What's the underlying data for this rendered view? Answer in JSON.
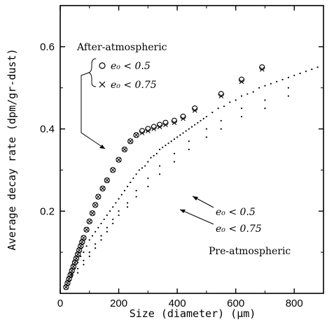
{
  "chart_data": {
    "type": "scatter",
    "xlabel": "Size (diameter) (μm)",
    "ylabel": "Average decay rate (dpm/gr-dust)",
    "xlim": [
      0,
      900
    ],
    "ylim": [
      0,
      0.7
    ],
    "x_ticks": [
      "0",
      "200",
      "400",
      "600",
      "800"
    ],
    "y_ticks": [
      "0.2",
      "0.4",
      "0.6"
    ],
    "grid": false,
    "legend_title": "After-atmospheric",
    "legend_items": [
      "e₀ < 0.5",
      "e₀ < 0.75"
    ],
    "pre_label": "Pre-atmospheric",
    "pre_items": [
      "e₀ < 0.5",
      "e₀ < 0.75"
    ],
    "series": [
      {
        "name": "After-atmospheric e0 < 0.5",
        "marker": "circle",
        "x": [
          20,
          25,
          30,
          35,
          40,
          45,
          50,
          55,
          60,
          65,
          70,
          75,
          80,
          90,
          100,
          110,
          120,
          130,
          145,
          160,
          180,
          200,
          220,
          240,
          260,
          280,
          300,
          320,
          340,
          360,
          390,
          420,
          460,
          550,
          620,
          690
        ],
        "y": [
          0.015,
          0.025,
          0.035,
          0.045,
          0.055,
          0.065,
          0.075,
          0.085,
          0.095,
          0.105,
          0.115,
          0.125,
          0.135,
          0.155,
          0.175,
          0.195,
          0.215,
          0.235,
          0.255,
          0.275,
          0.3,
          0.325,
          0.35,
          0.37,
          0.385,
          0.395,
          0.4,
          0.405,
          0.41,
          0.415,
          0.42,
          0.43,
          0.45,
          0.485,
          0.52,
          0.55
        ]
      },
      {
        "name": "After-atmospheric e0 < 0.75",
        "marker": "cross",
        "x": [
          20,
          25,
          30,
          35,
          40,
          45,
          50,
          55,
          60,
          65,
          70,
          75,
          80,
          90,
          100,
          110,
          120,
          130,
          145,
          160,
          180,
          200,
          220,
          240,
          260,
          280,
          300,
          320,
          340,
          360,
          390,
          420,
          460,
          550,
          620,
          690
        ],
        "y": [
          0.015,
          0.025,
          0.035,
          0.045,
          0.055,
          0.065,
          0.075,
          0.085,
          0.095,
          0.105,
          0.115,
          0.125,
          0.135,
          0.155,
          0.175,
          0.195,
          0.215,
          0.235,
          0.255,
          0.275,
          0.3,
          0.325,
          0.35,
          0.37,
          0.385,
          0.39,
          0.395,
          0.4,
          0.405,
          0.41,
          0.415,
          0.425,
          0.445,
          0.48,
          0.515,
          0.545
        ]
      },
      {
        "name": "Pre-atmospheric e0 < 0.5",
        "marker": "dot",
        "x": [
          20,
          30,
          40,
          50,
          60,
          70,
          80,
          90,
          100,
          110,
          120,
          130,
          140,
          150,
          160,
          170,
          180,
          190,
          200,
          210,
          220,
          230,
          240,
          250,
          260,
          270,
          280,
          290,
          300,
          310,
          320,
          330,
          340,
          350,
          360,
          370,
          380,
          390,
          400,
          410,
          420,
          430,
          440,
          450,
          460,
          470,
          480,
          490,
          500,
          520,
          540,
          560,
          580,
          600,
          620,
          640,
          660,
          680,
          700,
          720,
          740,
          760,
          780,
          800,
          820,
          840,
          860,
          880
        ],
        "y": [
          0.015,
          0.03,
          0.045,
          0.06,
          0.075,
          0.09,
          0.1,
          0.115,
          0.13,
          0.14,
          0.15,
          0.16,
          0.17,
          0.18,
          0.19,
          0.2,
          0.21,
          0.22,
          0.23,
          0.24,
          0.25,
          0.26,
          0.27,
          0.28,
          0.29,
          0.3,
          0.305,
          0.31,
          0.32,
          0.33,
          0.335,
          0.34,
          0.35,
          0.355,
          0.36,
          0.365,
          0.37,
          0.375,
          0.38,
          0.385,
          0.39,
          0.395,
          0.4,
          0.405,
          0.41,
          0.415,
          0.42,
          0.425,
          0.43,
          0.44,
          0.45,
          0.455,
          0.465,
          0.47,
          0.48,
          0.485,
          0.49,
          0.5,
          0.505,
          0.51,
          0.515,
          0.52,
          0.525,
          0.53,
          0.535,
          0.54,
          0.545,
          0.55
        ]
      },
      {
        "name": "Pre-atmospheric e0 < 0.75",
        "marker": "dot",
        "x": [
          40,
          60,
          80,
          100,
          120,
          140,
          160,
          180,
          200,
          230,
          260,
          300,
          340,
          390,
          440,
          500,
          550,
          620,
          700,
          780
        ],
        "y": [
          0.04,
          0.06,
          0.08,
          0.1,
          0.12,
          0.14,
          0.16,
          0.18,
          0.2,
          0.22,
          0.25,
          0.28,
          0.31,
          0.34,
          0.37,
          0.4,
          0.42,
          0.45,
          0.47,
          0.5
        ]
      },
      {
        "name": "Pre-atmospheric e0 < 0.75 lower",
        "marker": "dot",
        "x": [
          60,
          80,
          100,
          120,
          140,
          160,
          180,
          200,
          230,
          260,
          300,
          340,
          390,
          440,
          500,
          550,
          620,
          700,
          780
        ],
        "y": [
          0.05,
          0.07,
          0.09,
          0.11,
          0.13,
          0.15,
          0.17,
          0.19,
          0.21,
          0.235,
          0.26,
          0.29,
          0.32,
          0.35,
          0.38,
          0.4,
          0.43,
          0.45,
          0.48
        ]
      }
    ]
  }
}
